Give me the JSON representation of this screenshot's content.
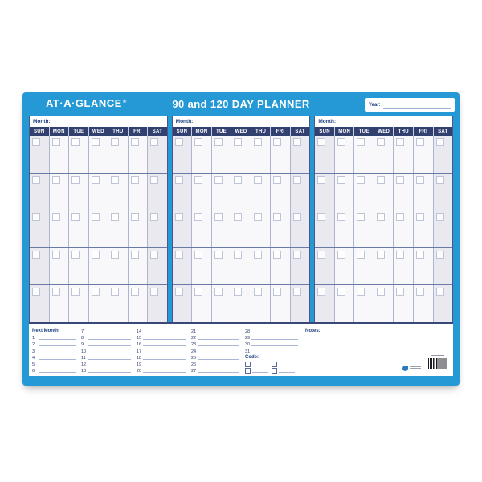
{
  "header": {
    "brand": "AT·A·GLANCE",
    "reg_mark": "®",
    "title": "90 and 120 DAY PLANNER",
    "year_label": "Year:",
    "year_value": ""
  },
  "grid": {
    "months_shown": 3,
    "month_label": "Month:",
    "day_headers": [
      "SUN",
      "MON",
      "TUE",
      "WED",
      "THU",
      "FRI",
      "SAT"
    ],
    "weeks": 5
  },
  "footer": {
    "next_month_label": "Next Month:",
    "day_columns": [
      [
        "1",
        "2",
        "3",
        "4",
        "5",
        "6"
      ],
      [
        "7",
        "8",
        "9",
        "10",
        "11",
        "12",
        "13"
      ],
      [
        "14",
        "15",
        "16",
        "17",
        "18",
        "19",
        "20"
      ],
      [
        "21",
        "22",
        "23",
        "24",
        "25",
        "26",
        "27"
      ],
      [
        "28",
        "29",
        "30",
        "31"
      ]
    ],
    "code_label": "Code:",
    "code_checkbox_rows": 2,
    "code_checkboxes_per_row": 2,
    "notes_label": "Notes:"
  },
  "colors": {
    "frame_blue": "#2599d5",
    "day_header_navy": "#32406f",
    "label_blue": "#1c3e7d",
    "weekend_fill": "#e9e9ef",
    "weekday_fill": "#f8f8fb",
    "grid_line_light": "#adb6d0",
    "grid_line_dark": "#6a79a6",
    "rule_line": "#aab6d8"
  }
}
